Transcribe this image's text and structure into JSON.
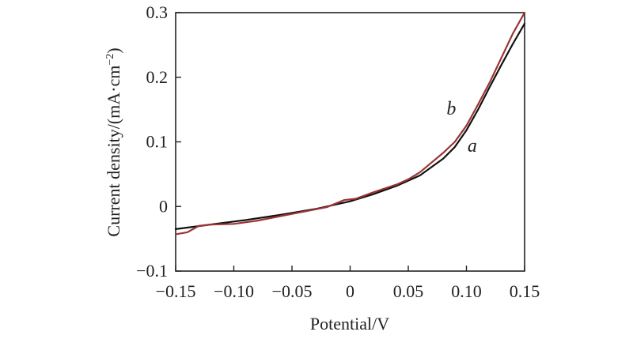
{
  "chart_data": {
    "type": "line",
    "title": "",
    "xlabel": "Potential/V",
    "ylabel_main": "Current density/(mA·cm",
    "ylabel_exp": "−2",
    "ylabel_close": ")",
    "xlim": [
      -0.15,
      0.15
    ],
    "ylim": [
      -0.1,
      0.3
    ],
    "xticks": [
      -0.15,
      -0.1,
      -0.05,
      0,
      0.05,
      0.1,
      0.15
    ],
    "xtick_labels": [
      "−0.15",
      "−0.10",
      "−0.05",
      "0",
      "0.05",
      "0.10",
      "0.15"
    ],
    "yticks": [
      -0.1,
      0,
      0.1,
      0.2,
      0.3
    ],
    "ytick_labels": [
      "−0.1",
      "0",
      "0.1",
      "0.2",
      "0.3"
    ],
    "grid": false,
    "series": [
      {
        "name": "a",
        "color": "#111111",
        "label_pos": [
          0.105,
          0.085
        ],
        "x": [
          -0.15,
          -0.12,
          -0.09,
          -0.06,
          -0.03,
          0.0,
          0.02,
          0.04,
          0.06,
          0.08,
          0.09,
          0.1,
          0.11,
          0.12,
          0.13,
          0.14,
          0.15
        ],
        "y": [
          -0.035,
          -0.028,
          -0.021,
          -0.013,
          -0.004,
          0.008,
          0.019,
          0.032,
          0.048,
          0.074,
          0.092,
          0.118,
          0.15,
          0.185,
          0.219,
          0.252,
          0.283
        ]
      },
      {
        "name": "b",
        "color": "#9b3434",
        "label_pos": [
          0.087,
          0.142
        ],
        "x": [
          -0.15,
          -0.14,
          -0.13,
          -0.12,
          -0.1,
          -0.08,
          -0.06,
          -0.04,
          -0.02,
          -0.005,
          0.005,
          0.02,
          0.04,
          0.05,
          0.06,
          0.07,
          0.08,
          0.09,
          0.1,
          0.11,
          0.12,
          0.13,
          0.14,
          0.15
        ],
        "y": [
          -0.043,
          -0.04,
          -0.03,
          -0.028,
          -0.027,
          -0.022,
          -0.015,
          -0.008,
          -0.001,
          0.01,
          0.012,
          0.022,
          0.034,
          0.042,
          0.053,
          0.068,
          0.083,
          0.1,
          0.125,
          0.158,
          0.192,
          0.23,
          0.268,
          0.3
        ]
      }
    ]
  }
}
